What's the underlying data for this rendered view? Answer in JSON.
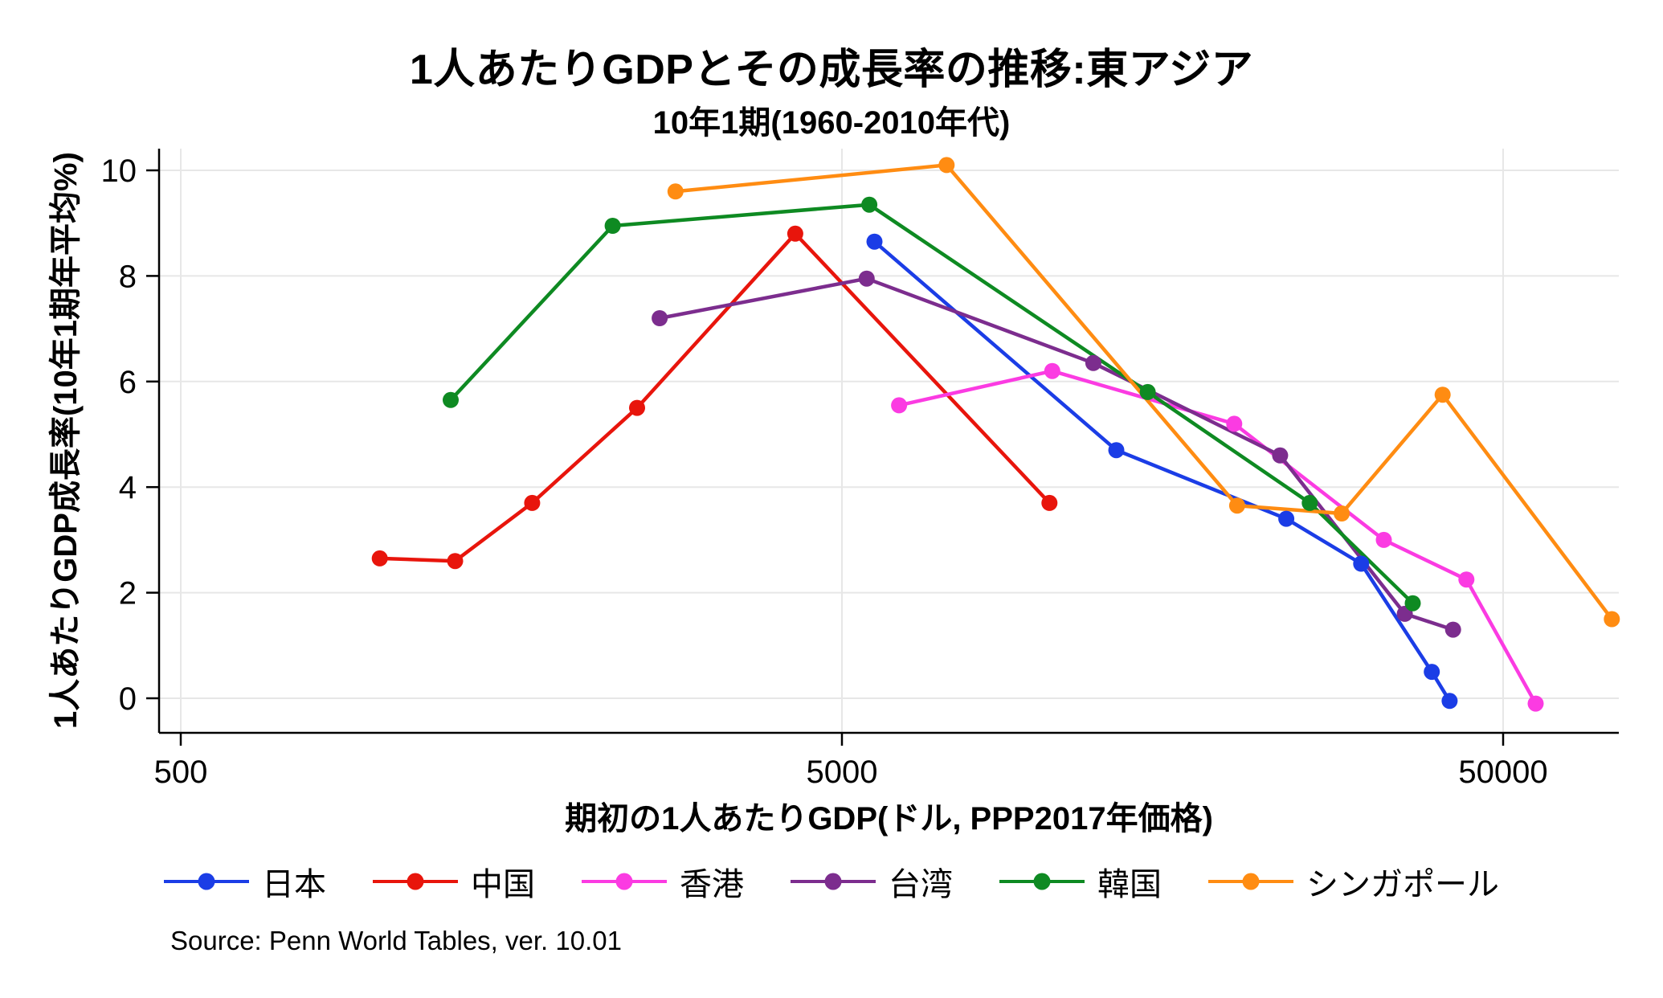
{
  "source_note": "Source: Penn World Tables, ver. 10.01",
  "chart_data": {
    "type": "line",
    "title": "1人あたりGDPとその成長率の推移:東アジア",
    "subtitle": "10年1期(1960-2010年代)",
    "xlabel": "期初の1人あたりGDP(ドル, PPP2017年価格)",
    "ylabel": "1人あたりGDP成長率(10年1期年平均%)",
    "x_scale": "log",
    "grid": true,
    "legend_position": "bottom",
    "xlim": [
      460,
      76000
    ],
    "ylim": [
      -0.7,
      10.4
    ],
    "x_ticks": [
      500,
      5000,
      50000
    ],
    "y_ticks": [
      0,
      2,
      4,
      6,
      8,
      10
    ],
    "axis_color": "#000000",
    "grid_color": "#e7e7e7",
    "series": [
      {
        "name": "日本",
        "color": "#1b3de6",
        "points": [
          [
            5600,
            8.65
          ],
          [
            13000,
            4.7
          ],
          [
            23500,
            3.4
          ],
          [
            30500,
            2.55
          ],
          [
            39000,
            0.5
          ],
          [
            41500,
            -0.05
          ]
        ]
      },
      {
        "name": "中国",
        "color": "#e8150c",
        "points": [
          [
            1000,
            2.65
          ],
          [
            1300,
            2.6
          ],
          [
            1700,
            3.7
          ],
          [
            2450,
            5.5
          ],
          [
            4250,
            8.8
          ],
          [
            10300,
            3.7
          ]
        ]
      },
      {
        "name": "香港",
        "color": "#fb3be2",
        "points": [
          [
            6100,
            5.55
          ],
          [
            10400,
            6.2
          ],
          [
            19600,
            5.2
          ],
          [
            33000,
            3.0
          ],
          [
            44000,
            2.25
          ],
          [
            56000,
            -0.1
          ]
        ]
      },
      {
        "name": "台湾",
        "color": "#7c2d8e",
        "points": [
          [
            2650,
            7.2
          ],
          [
            5450,
            7.95
          ],
          [
            12000,
            6.35
          ],
          [
            23000,
            4.6
          ],
          [
            35500,
            1.6
          ],
          [
            42000,
            1.3
          ]
        ]
      },
      {
        "name": "韓国",
        "color": "#0e8a22",
        "points": [
          [
            1280,
            5.65
          ],
          [
            2250,
            8.95
          ],
          [
            5500,
            9.35
          ],
          [
            14500,
            5.8
          ],
          [
            25500,
            3.7
          ],
          [
            36500,
            1.8
          ]
        ]
      },
      {
        "name": "シンガポール",
        "color": "#ff8c12",
        "points": [
          [
            2800,
            9.6
          ],
          [
            7200,
            10.1
          ],
          [
            19800,
            3.65
          ],
          [
            28500,
            3.5
          ],
          [
            40500,
            5.75
          ],
          [
            73000,
            1.5
          ]
        ]
      }
    ]
  }
}
